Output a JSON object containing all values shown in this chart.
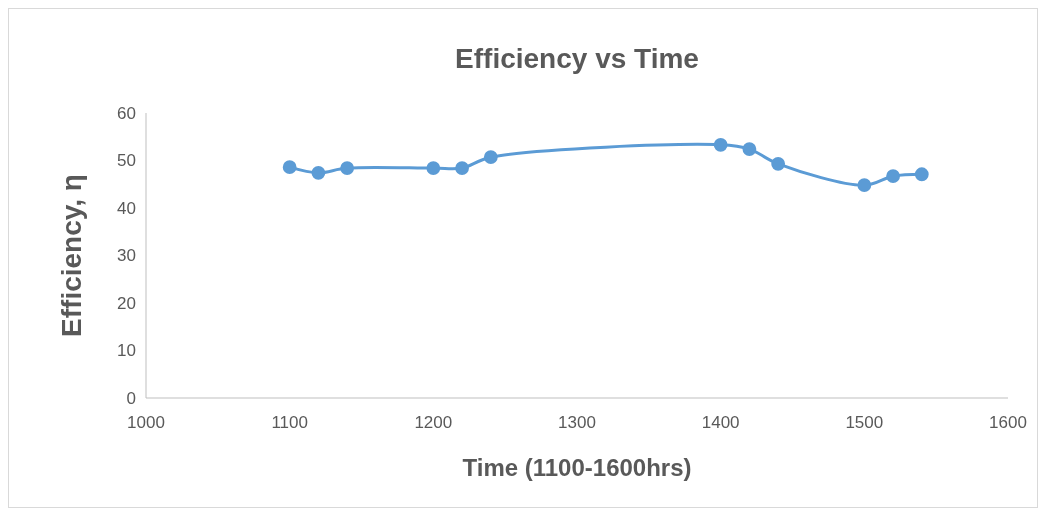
{
  "chart_data": {
    "type": "line",
    "title": "Efficiency vs Time",
    "xlabel": "Time (1100-1600hrs)",
    "ylabel": "Efficiency, η",
    "x": [
      1100,
      1120,
      1140,
      1200,
      1220,
      1240,
      1400,
      1420,
      1440,
      1500,
      1520,
      1540
    ],
    "series": [
      {
        "color": "#5b9bd5",
        "values": [
          48.6,
          47.4,
          48.4,
          48.4,
          48.4,
          50.7,
          53.3,
          52.4,
          49.3,
          44.8,
          46.7,
          47.1
        ]
      }
    ],
    "xlim": [
      1000,
      1600
    ],
    "xticks": [
      1000,
      1100,
      1200,
      1300,
      1400,
      1500,
      1600
    ],
    "ylim": [
      0,
      60
    ],
    "yticks": [
      0,
      10,
      20,
      30,
      40,
      50,
      60
    ],
    "grid": false,
    "marker": "circle",
    "line_style": "solid"
  }
}
